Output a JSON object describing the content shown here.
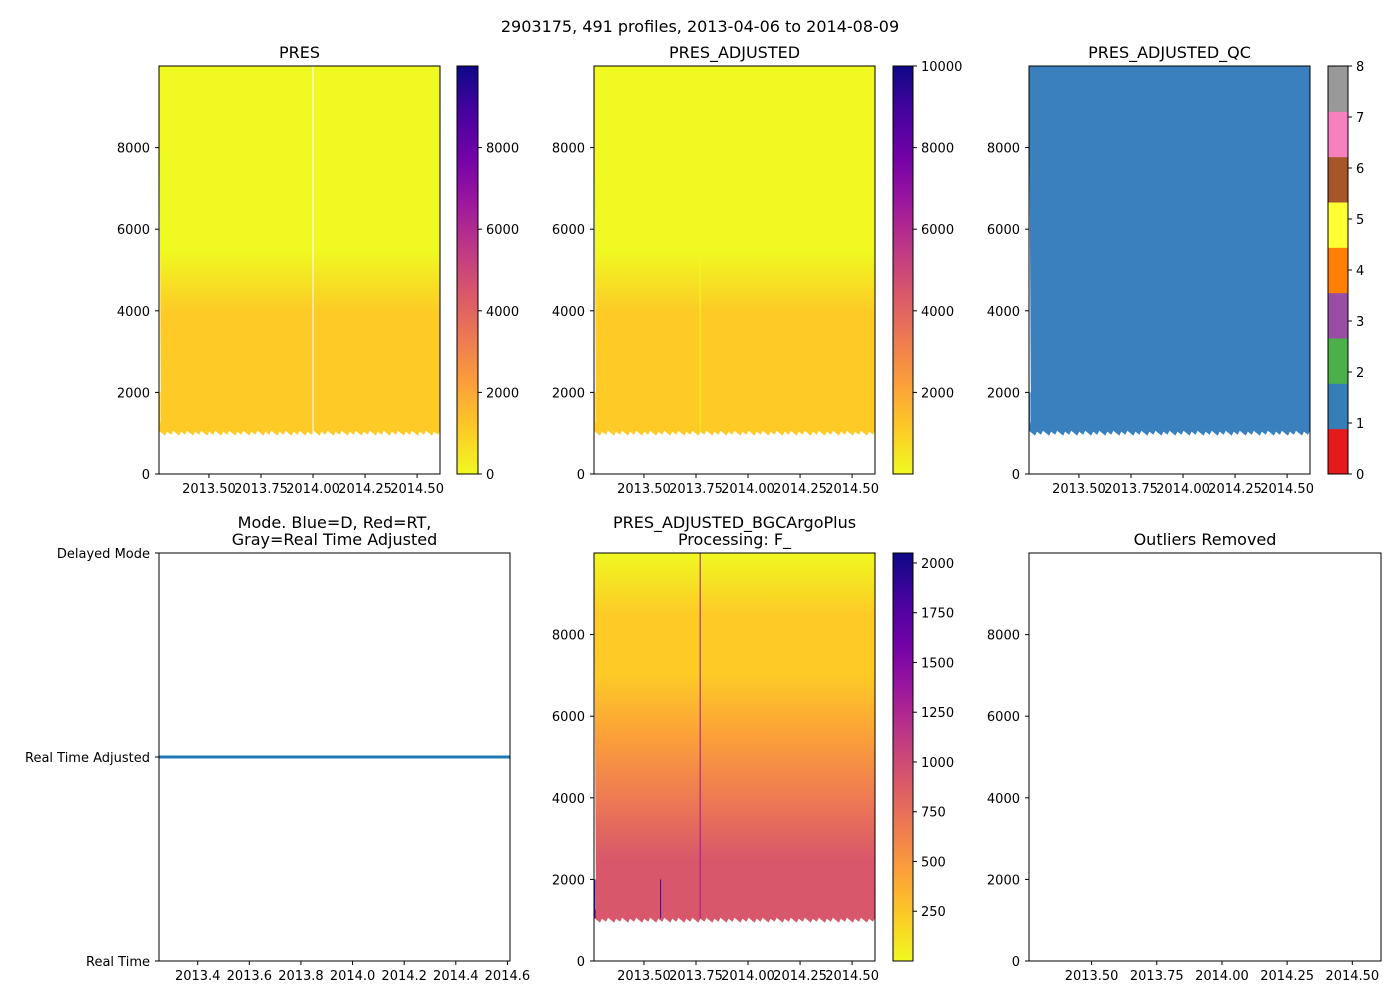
{
  "title": "2903175, 491 profiles, 2013-04-06 to 2014-08-09",
  "colors": {
    "qc": [
      "#e41a1c",
      "#377eb8",
      "#4daf4a",
      "#984ea3",
      "#ff7f00",
      "#ffff33",
      "#a65628",
      "#f781bf",
      "#999999"
    ],
    "qc_fill": "#3a80bf",
    "mode_line": "#1f77b4",
    "plasma_r": [
      "#f0f921",
      "#fdca26",
      "#fb9f3a",
      "#ed7953",
      "#d8576b",
      "#bd3786",
      "#9c179e",
      "#7201a8",
      "#46039f",
      "#0d0887"
    ]
  },
  "chart_data": [
    {
      "name": "pres",
      "type": "heatmap",
      "title": "PRES",
      "xlim": [
        2013.26,
        2014.61
      ],
      "ylim": [
        10000,
        0
      ],
      "xticks": [
        2013.5,
        2013.75,
        2014.0,
        2014.25,
        2014.5
      ],
      "xtick_labels": [
        "2013.50",
        "2013.75",
        "2014.00",
        "2014.25",
        "2014.50"
      ],
      "yticks": [
        0,
        2000,
        4000,
        6000,
        8000
      ],
      "ytick_labels": [
        "0",
        "2000",
        "4000",
        "6000",
        "8000"
      ],
      "profile_depth": 1000,
      "spikes": [
        {
          "x": 2013.265,
          "depth": 2000
        },
        {
          "x": 2013.58,
          "depth": 2000
        }
      ],
      "gaps": [
        {
          "x": 2014.0
        }
      ],
      "colorbar": {
        "cmap": "plasma_r",
        "vmin": 0,
        "vmax": 10000,
        "ticks": [
          0,
          2000,
          4000,
          6000,
          8000
        ],
        "tick_labels": [
          "0",
          "2000",
          "4000",
          "6000",
          "8000"
        ]
      }
    },
    {
      "name": "pres-adjusted",
      "type": "heatmap",
      "title": "PRES_ADJUSTED",
      "xlim": [
        2013.26,
        2014.61
      ],
      "ylim": [
        10000,
        0
      ],
      "xticks": [
        2013.5,
        2013.75,
        2014.0,
        2014.25,
        2014.5
      ],
      "xtick_labels": [
        "2013.50",
        "2013.75",
        "2014.00",
        "2014.25",
        "2014.50"
      ],
      "yticks": [
        0,
        2000,
        4000,
        6000,
        8000
      ],
      "ytick_labels": [
        "0",
        "2000",
        "4000",
        "6000",
        "8000"
      ],
      "profile_depth": 1000,
      "spikes": [
        {
          "x": 2013.265,
          "depth": 2000
        },
        {
          "x": 2013.58,
          "depth": 2000
        },
        {
          "x": 2013.77,
          "depth": 10000
        }
      ],
      "gaps": [],
      "colorbar": {
        "cmap": "plasma_r",
        "vmin": 0,
        "vmax": 10000,
        "ticks": [
          2000,
          4000,
          6000,
          8000,
          10000
        ],
        "tick_labels": [
          "2000",
          "4000",
          "6000",
          "8000",
          "10000"
        ]
      }
    },
    {
      "name": "pres-adjusted-qc",
      "type": "heatmap",
      "title": "PRES_ADJUSTED_QC",
      "xlim": [
        2013.26,
        2014.61
      ],
      "ylim": [
        10000,
        0
      ],
      "xticks": [
        2013.5,
        2013.75,
        2014.0,
        2014.25,
        2014.5
      ],
      "xtick_labels": [
        "2013.50",
        "2013.75",
        "2014.00",
        "2014.25",
        "2014.50"
      ],
      "yticks": [
        0,
        2000,
        4000,
        6000,
        8000
      ],
      "ytick_labels": [
        "0",
        "2000",
        "4000",
        "6000",
        "8000"
      ],
      "profile_depth": 1000,
      "qc_value": 1,
      "spikes": [
        {
          "x": 2013.265,
          "depth": 2000
        },
        {
          "x": 2013.58,
          "depth": 2000
        },
        {
          "x": 2013.77,
          "depth": 10000
        },
        {
          "x": 2013.99,
          "depth": 10000
        }
      ],
      "gaps": [],
      "colorbar": {
        "cmap": "qc",
        "vmin": 0,
        "vmax": 8,
        "ticks": [
          0,
          1,
          2,
          3,
          4,
          5,
          6,
          7,
          8
        ],
        "tick_labels": [
          "0",
          "1",
          "2",
          "3",
          "4",
          "5",
          "6",
          "7",
          "8"
        ]
      }
    },
    {
      "name": "mode",
      "type": "line",
      "title": "Mode. Blue=D, Red=RT,\nGray=Real Time Adjusted",
      "xlim": [
        2013.25,
        2014.61
      ],
      "ylim": [
        0,
        2
      ],
      "xticks": [
        2013.4,
        2013.6,
        2013.8,
        2014.0,
        2014.2,
        2014.4,
        2014.6
      ],
      "xtick_labels": [
        "2013.4",
        "2013.6",
        "2013.8",
        "2014.0",
        "2014.2",
        "2014.4",
        "2014.6"
      ],
      "yticks": [
        0,
        1,
        2
      ],
      "ytick_labels": [
        "Real Time",
        "Real Time Adjusted",
        "Delayed Mode"
      ],
      "series": [
        {
          "name": "mode",
          "x": [
            2013.25,
            2014.61
          ],
          "y": [
            1,
            1
          ]
        }
      ]
    },
    {
      "name": "bgc-argo-plus",
      "type": "heatmap",
      "title": "PRES_ADJUSTED_BGCArgoPlus\nProcessing: F_",
      "xlim": [
        2013.26,
        2014.61
      ],
      "ylim": [
        10000,
        0
      ],
      "xticks": [
        2013.5,
        2013.75,
        2014.0,
        2014.25,
        2014.5
      ],
      "xtick_labels": [
        "2013.50",
        "2013.75",
        "2014.00",
        "2014.25",
        "2014.50"
      ],
      "yticks": [
        0,
        2000,
        4000,
        6000,
        8000
      ],
      "ytick_labels": [
        "0",
        "2000",
        "4000",
        "6000",
        "8000"
      ],
      "profile_depth": 1000,
      "spikes": [
        {
          "x": 2013.265,
          "depth": 2000
        },
        {
          "x": 2013.58,
          "depth": 2000
        },
        {
          "x": 2013.77,
          "depth": 10000
        }
      ],
      "gaps": [],
      "colorbar": {
        "cmap": "plasma_r",
        "vmin": 0,
        "vmax": 2050,
        "ticks": [
          250,
          500,
          750,
          1000,
          1250,
          1500,
          1750,
          2000
        ],
        "tick_labels": [
          "250",
          "500",
          "750",
          "1000",
          "1250",
          "1500",
          "1750",
          "2000"
        ]
      }
    },
    {
      "name": "outliers",
      "type": "scatter",
      "title": "Outliers Removed",
      "xlim": [
        2013.26,
        2014.61
      ],
      "ylim": [
        10000,
        0
      ],
      "xticks": [
        2013.5,
        2013.75,
        2014.0,
        2014.25,
        2014.5
      ],
      "xtick_labels": [
        "2013.50",
        "2013.75",
        "2014.00",
        "2014.25",
        "2014.50"
      ],
      "yticks": [
        0,
        2000,
        4000,
        6000,
        8000
      ],
      "ytick_labels": [
        "0",
        "2000",
        "4000",
        "6000",
        "8000"
      ],
      "points": []
    }
  ]
}
